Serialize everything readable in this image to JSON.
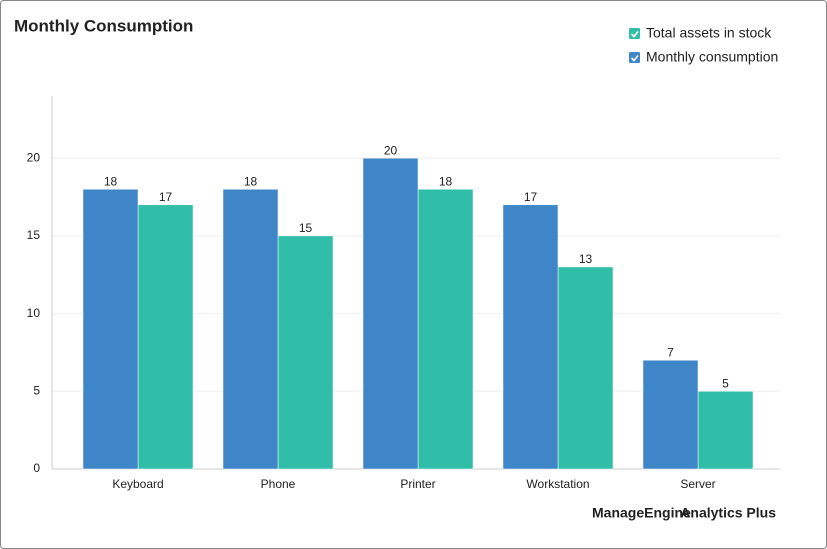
{
  "chart_data": {
    "type": "bar",
    "title": "Monthly Consumption",
    "categories": [
      "Keyboard",
      "Phone",
      "Printer",
      "Workstation",
      "Server"
    ],
    "series": [
      {
        "name": "Total assets in stock",
        "color": "#31bea8",
        "values": [
          17,
          15,
          18,
          13,
          5
        ]
      },
      {
        "name": "Monthly consumption",
        "color": "#3f86c8",
        "values": [
          18,
          18,
          20,
          17,
          7
        ]
      }
    ],
    "ylim": [
      0,
      24
    ],
    "yticks": [
      0,
      5,
      10,
      15,
      20
    ],
    "grid": true,
    "brand": "ManageEngine",
    "product": "Analytics Plus"
  }
}
